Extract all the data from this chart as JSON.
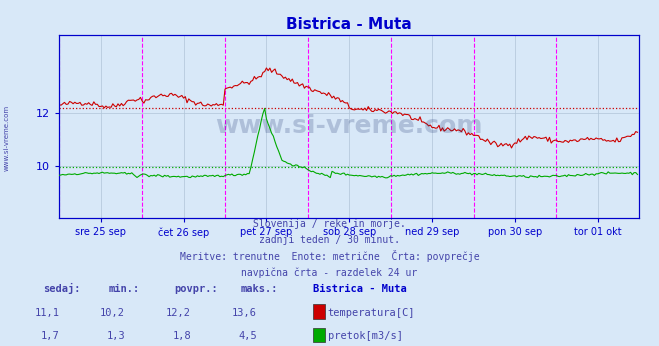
{
  "title": "Bistrica - Muta",
  "title_color": "#0000cc",
  "background_color": "#d8e8f8",
  "plot_bg_color": "#d8e8f8",
  "x_labels": [
    "sre 25 sep",
    "čet 26 sep",
    "pet 27 sep",
    "sob 28 sep",
    "ned 29 sep",
    "pon 30 sep",
    "tor 01 okt"
  ],
  "temp_avg": 12.2,
  "flow_avg": 1.8,
  "temp_color": "#cc0000",
  "flow_color": "#00aa00",
  "vline_color": "#ff00ff",
  "grid_color": "#b0c4d8",
  "axis_color": "#0000cc",
  "text_color": "#4444aa",
  "footer_lines": [
    "Slovenija / reke in morje.",
    "zadnji teden / 30 minut.",
    "Meritve: trenutne  Enote: metrične  Črta: povprečje",
    "navpična črta - razdelek 24 ur"
  ],
  "legend_title": "Bistrica - Muta",
  "legend_entries": [
    "temperatura[C]",
    "pretok[m3/s]"
  ],
  "legend_colors": [
    "#cc0000",
    "#00aa00"
  ],
  "stats_headers": [
    "sedaj:",
    "min.:",
    "povpr.:",
    "maks.:"
  ],
  "stats_temp": [
    "11,1",
    "10,2",
    "12,2",
    "13,6"
  ],
  "stats_flow": [
    "1,7",
    "1,3",
    "1,8",
    "4,5"
  ],
  "n_points": 336,
  "watermark": "www.si-vreme.com",
  "left_label": "www.si-vreme.com"
}
